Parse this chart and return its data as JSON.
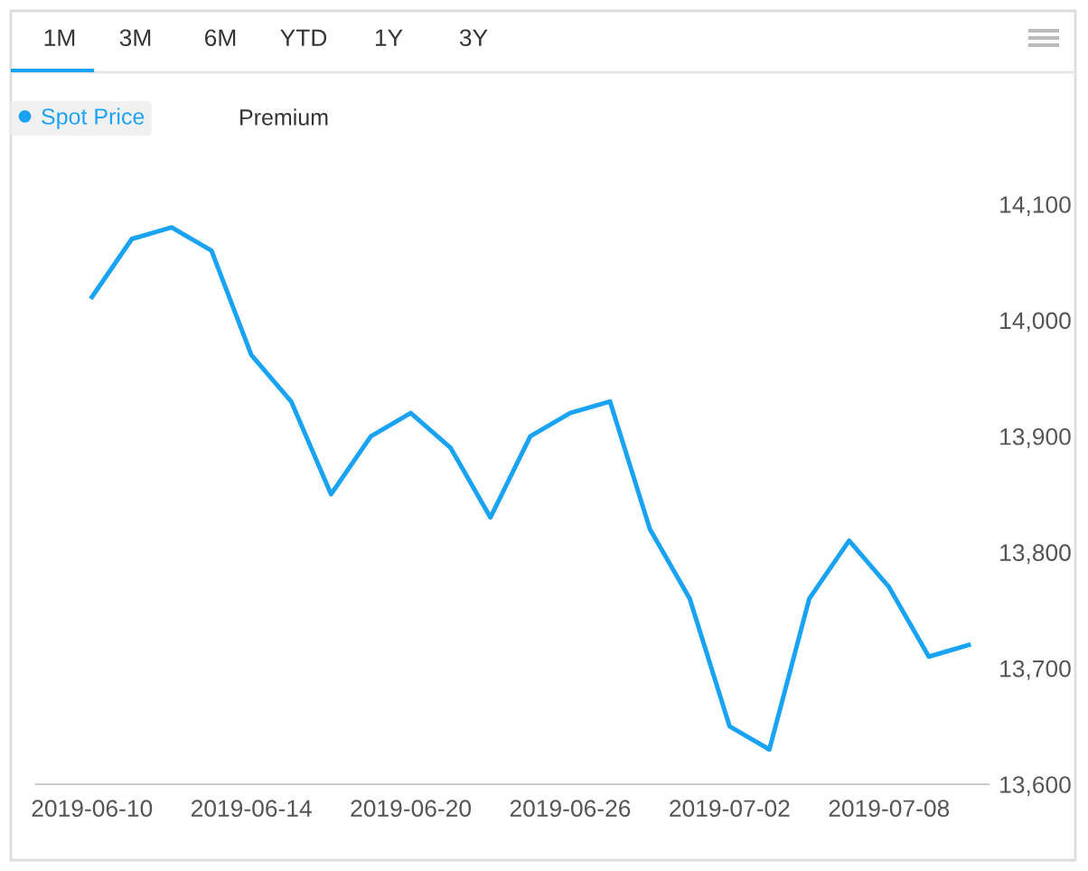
{
  "chart_data": {
    "type": "line",
    "categories": [
      "2019-06-10",
      null,
      null,
      null,
      "2019-06-14",
      null,
      null,
      null,
      "2019-06-20",
      null,
      null,
      null,
      "2019-06-26",
      null,
      null,
      null,
      "2019-07-02",
      null,
      null,
      null,
      "2019-07-08",
      null,
      null
    ],
    "series": [
      {
        "name": "Spot Price",
        "color": "#1aa3f5",
        "axis": "y2",
        "values": [
          14020,
          14070,
          14080,
          14060,
          13970,
          13930,
          13850,
          13900,
          13920,
          13890,
          13830,
          13900,
          13920,
          13930,
          13820,
          13760,
          13650,
          13630,
          13760,
          13810,
          13770,
          13710,
          13720
        ]
      }
    ],
    "y2lim": [
      13600,
      14100
    ],
    "y2ticks": [
      {
        "value": 13600,
        "label": "13,600"
      },
      {
        "value": 13700,
        "label": "13,700"
      },
      {
        "value": 13800,
        "label": "13,800"
      },
      {
        "value": 13900,
        "label": "13,900"
      },
      {
        "value": 14000,
        "label": "14,000"
      },
      {
        "value": 14100,
        "label": "14,100"
      }
    ],
    "annotations": [
      "1M",
      "3M",
      "6M",
      "YTD",
      "1Y",
      "3Y",
      "Premium"
    ],
    "legend": "top left",
    "grid": false,
    "marker": "none",
    "line_style": "solid"
  }
}
